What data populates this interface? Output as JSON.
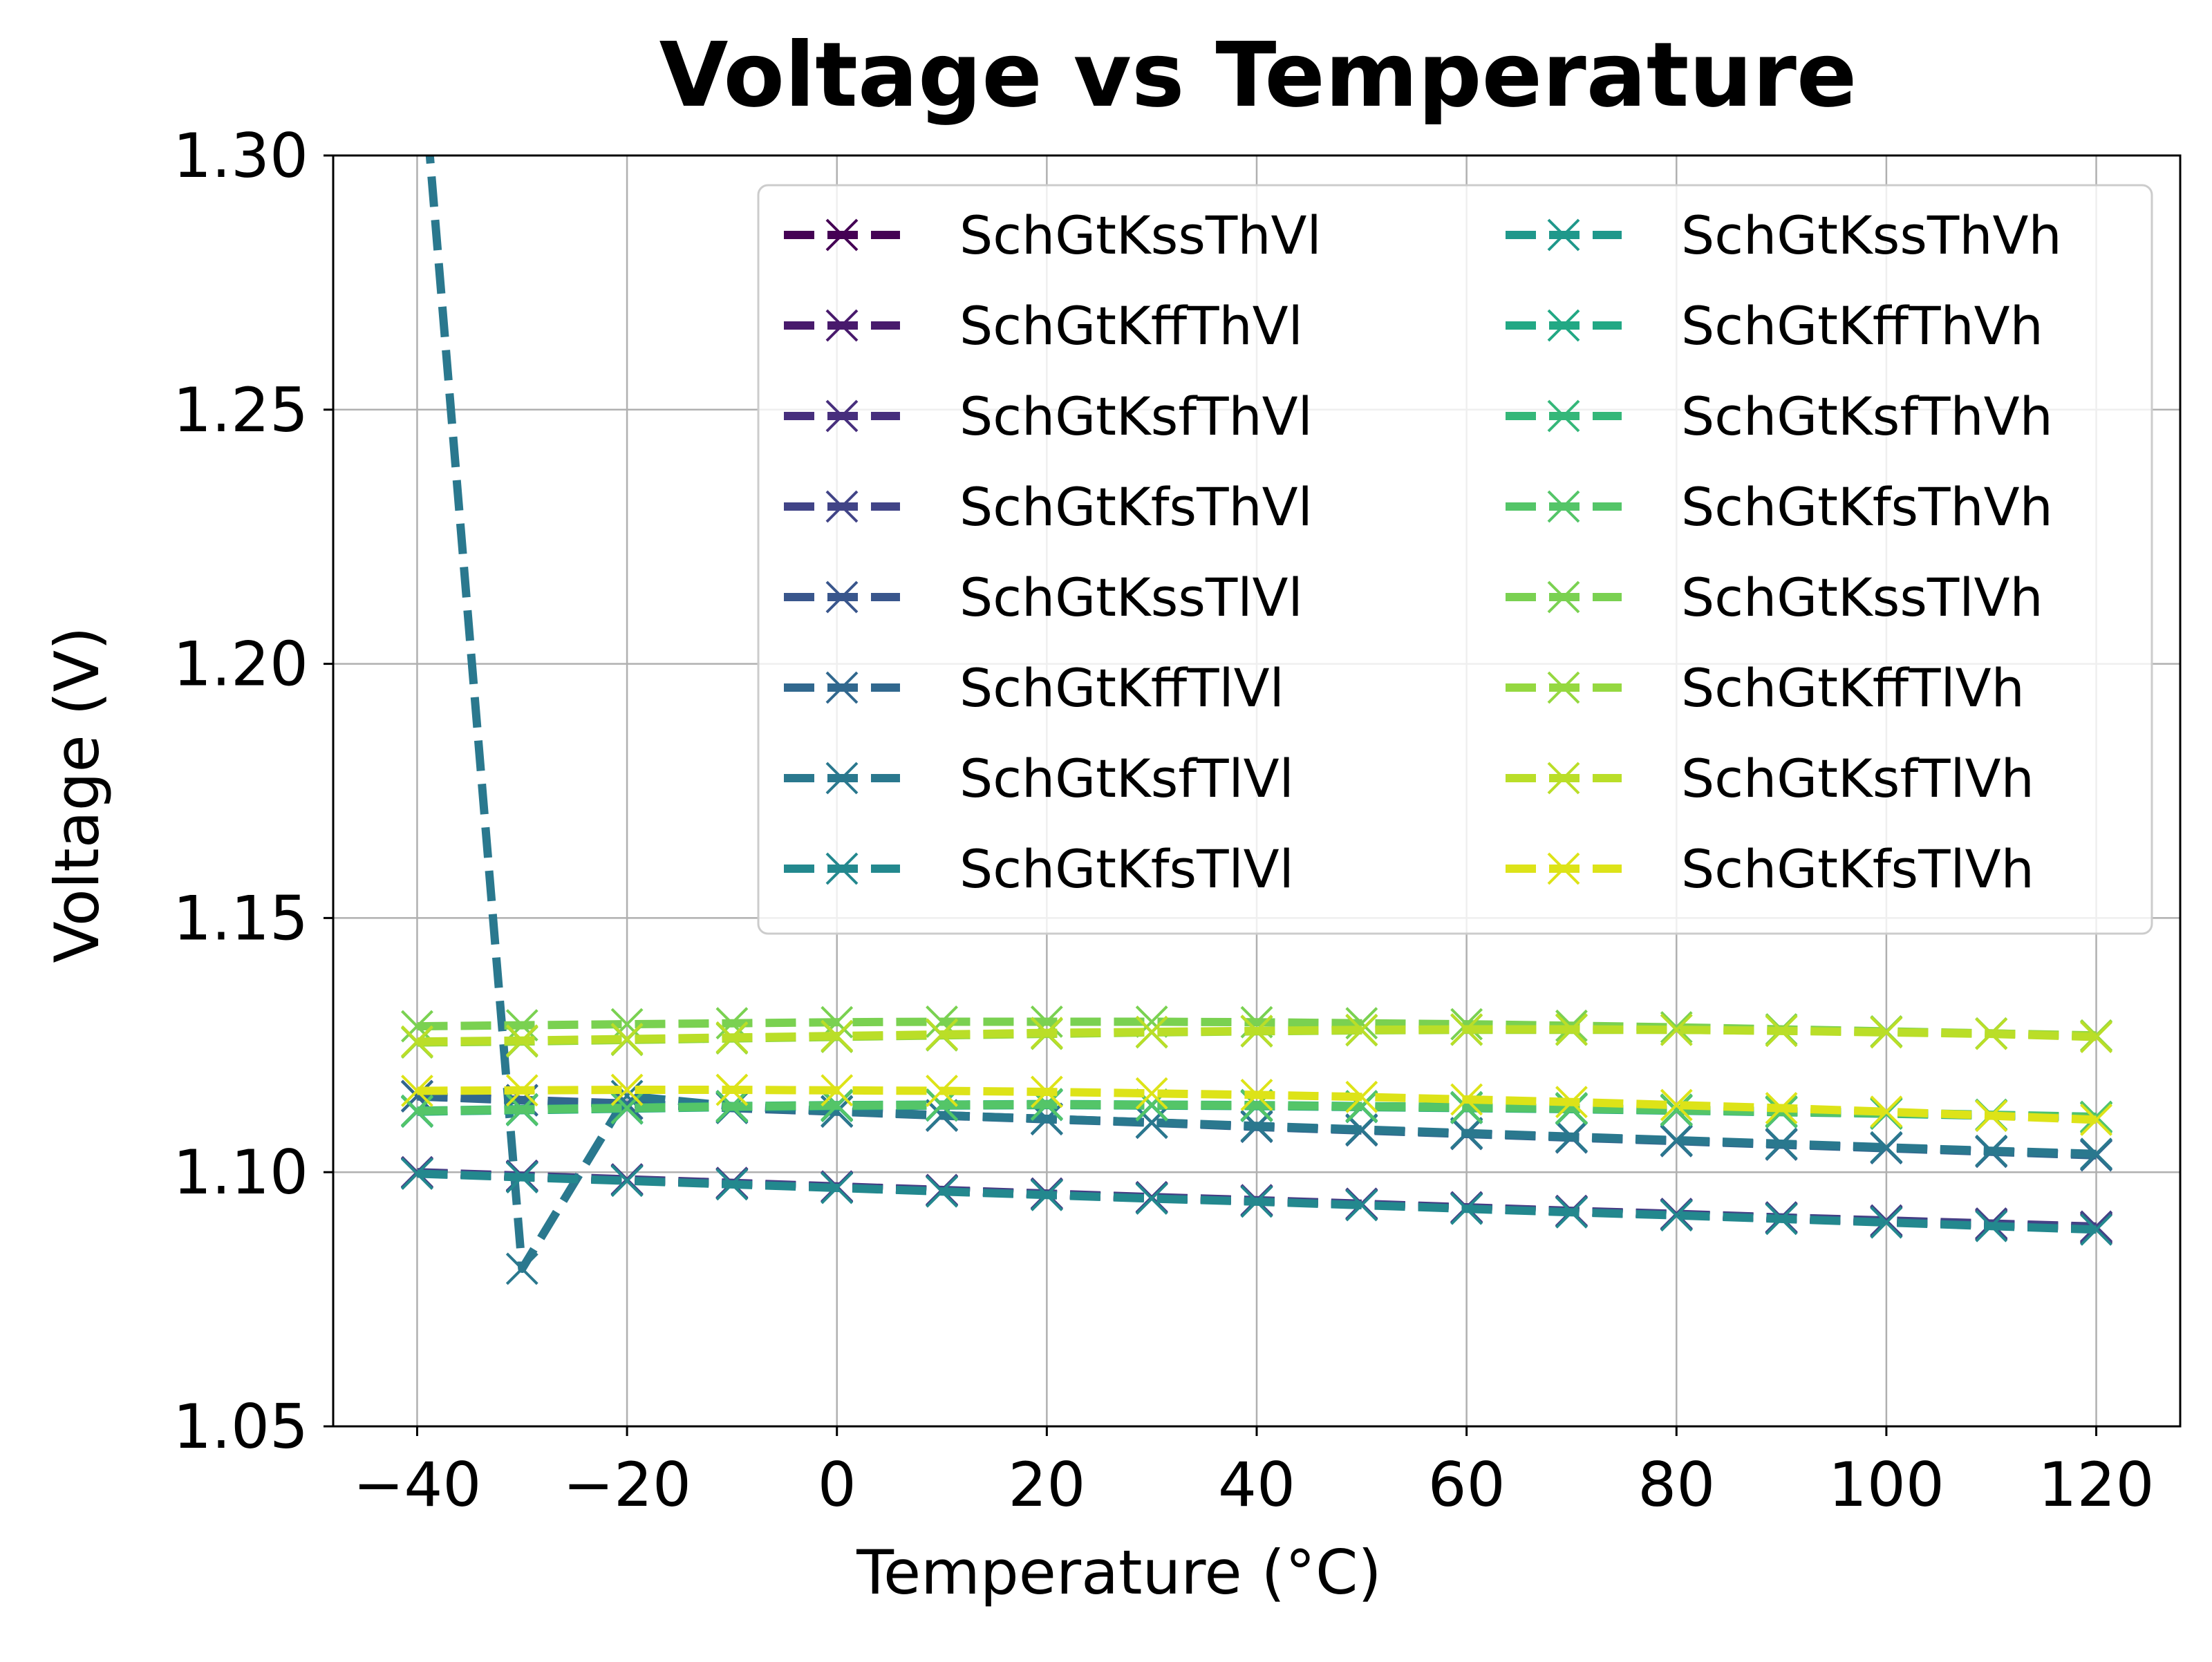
{
  "chart_data": {
    "type": "line",
    "title": "Voltage vs Temperature",
    "xlabel": "Temperature (°C)",
    "ylabel": "Voltage (V)",
    "xlim": [
      -48,
      128
    ],
    "ylim": [
      1.05,
      1.3
    ],
    "xticks": [
      -40,
      -20,
      0,
      20,
      40,
      60,
      80,
      100,
      120
    ],
    "xtick_labels": [
      "−40",
      "−20",
      "0",
      "20",
      "40",
      "60",
      "80",
      "100",
      "120"
    ],
    "yticks": [
      1.05,
      1.1,
      1.15,
      1.2,
      1.25,
      1.3
    ],
    "ytick_labels": [
      "1.05",
      "1.10",
      "1.15",
      "1.20",
      "1.25",
      "1.30"
    ],
    "grid": true,
    "legend": {
      "placement": "top-right",
      "columns": 2
    },
    "line_style": "dashed",
    "marker": "x",
    "x": [
      -40,
      -30,
      -20,
      -10,
      0,
      10,
      20,
      30,
      40,
      50,
      60,
      70,
      80,
      90,
      100,
      110,
      120
    ],
    "series": [
      {
        "name": "SchGtKssThVl",
        "color": "#440154",
        "values": [
          1.0998,
          1.0991,
          1.0984,
          1.0977,
          1.097,
          1.0963,
          1.0956,
          1.0949,
          1.0943,
          1.0936,
          1.0929,
          1.0922,
          1.0916,
          1.0909,
          1.0902,
          1.0896,
          1.0889
        ]
      },
      {
        "name": "SchGtKffThVl",
        "color": "#481a6c",
        "values": [
          1.0999,
          1.0992,
          1.0985,
          1.0978,
          1.0971,
          1.0964,
          1.0957,
          1.095,
          1.0944,
          1.0937,
          1.093,
          1.0923,
          1.0917,
          1.091,
          1.0903,
          1.0897,
          1.0891
        ]
      },
      {
        "name": "SchGtKsfThVl",
        "color": "#472f7d",
        "values": [
          1.1,
          1.0993,
          1.0986,
          1.0979,
          1.0972,
          1.0965,
          1.0958,
          1.0951,
          1.0945,
          1.0938,
          1.0931,
          1.0924,
          1.0918,
          1.0911,
          1.0905,
          1.0899,
          1.0893
        ]
      },
      {
        "name": "SchGtKfsThVl",
        "color": "#414487",
        "values": [
          1.0999,
          1.0992,
          1.0985,
          1.0978,
          1.0971,
          1.0964,
          1.0957,
          1.095,
          1.0944,
          1.0937,
          1.093,
          1.0923,
          1.0917,
          1.0911,
          1.0904,
          1.0898,
          1.0892
        ]
      },
      {
        "name": "SchGtKssTlVl",
        "color": "#39568c",
        "values": [
          1.115,
          1.1142,
          1.1135,
          1.1127,
          1.112,
          1.1112,
          1.1105,
          1.1098,
          1.109,
          1.1083,
          1.1076,
          1.1069,
          1.1062,
          1.1055,
          1.1048,
          1.1041,
          1.1034
        ]
      },
      {
        "name": "SchGtKffTlVl",
        "color": "#31688e",
        "values": [
          1.1149,
          1.1141,
          1.1134,
          1.1126,
          1.1119,
          1.1111,
          1.1104,
          1.1097,
          1.1089,
          1.1082,
          1.1075,
          1.1068,
          1.1061,
          1.1054,
          1.1047,
          1.104,
          1.1033
        ]
      },
      {
        "name": "SchGtKsfTlVl",
        "color": "#2a788e",
        "values": [
          1.33,
          1.081,
          1.115,
          1.113,
          1.112,
          1.1112,
          1.1105,
          1.1098,
          1.1091,
          1.1084,
          1.1077,
          1.107,
          1.1063,
          1.1056,
          1.1049,
          1.1042,
          1.1036
        ]
      },
      {
        "name": "SchGtKfsTlVl",
        "color": "#23888e",
        "values": [
          1.0997,
          1.099,
          1.0983,
          1.0976,
          1.0969,
          1.0962,
          1.0955,
          1.0948,
          1.0942,
          1.0935,
          1.0928,
          1.0921,
          1.0915,
          1.0908,
          1.0901,
          1.0894,
          1.0887
        ]
      },
      {
        "name": "SchGtKssThVh",
        "color": "#1f988b",
        "values": [
          1.112,
          1.1123,
          1.1126,
          1.1129,
          1.1131,
          1.1132,
          1.1133,
          1.1132,
          1.1131,
          1.1129,
          1.1127,
          1.1125,
          1.1122,
          1.1119,
          1.1116,
          1.1112,
          1.1108
        ]
      },
      {
        "name": "SchGtKffThVh",
        "color": "#22a884",
        "values": [
          1.1119,
          1.1122,
          1.1125,
          1.1128,
          1.113,
          1.1131,
          1.1132,
          1.1131,
          1.113,
          1.1128,
          1.1126,
          1.1124,
          1.1121,
          1.1118,
          1.1115,
          1.1111,
          1.1107
        ]
      },
      {
        "name": "SchGtKsfThVh",
        "color": "#35b779",
        "values": [
          1.1121,
          1.1124,
          1.1127,
          1.113,
          1.1132,
          1.1133,
          1.1134,
          1.1133,
          1.1132,
          1.113,
          1.1128,
          1.1126,
          1.1123,
          1.112,
          1.1117,
          1.1113,
          1.1109
        ]
      },
      {
        "name": "SchGtKfsThVh",
        "color": "#54c568",
        "values": [
          1.112,
          1.1123,
          1.1126,
          1.1129,
          1.1131,
          1.1132,
          1.1133,
          1.1132,
          1.1131,
          1.1129,
          1.1127,
          1.1125,
          1.1122,
          1.1119,
          1.1116,
          1.1112,
          1.1108
        ]
      },
      {
        "name": "SchGtKssTlVh",
        "color": "#7ad151",
        "values": [
          1.1287,
          1.1289,
          1.1291,
          1.1293,
          1.1295,
          1.1296,
          1.1296,
          1.1296,
          1.1295,
          1.1293,
          1.1291,
          1.1288,
          1.1285,
          1.1281,
          1.1277,
          1.1273,
          1.1268
        ]
      },
      {
        "name": "SchGtKffTlVh",
        "color": "#95d840",
        "values": [
          1.1255,
          1.1257,
          1.126,
          1.1263,
          1.1266,
          1.1269,
          1.1272,
          1.1275,
          1.1277,
          1.1279,
          1.128,
          1.128,
          1.128,
          1.1278,
          1.1276,
          1.1273,
          1.1269
        ]
      },
      {
        "name": "SchGtKsfTlVh",
        "color": "#bade28",
        "values": [
          1.1257,
          1.1259,
          1.1262,
          1.1265,
          1.1268,
          1.1271,
          1.1274,
          1.1276,
          1.1278,
          1.128,
          1.1281,
          1.1281,
          1.128,
          1.1278,
          1.1275,
          1.1272,
          1.1266
        ]
      },
      {
        "name": "SchGtKfsTlVh",
        "color": "#dde318",
        "values": [
          1.116,
          1.1161,
          1.1162,
          1.1162,
          1.1161,
          1.116,
          1.1158,
          1.1155,
          1.1152,
          1.1148,
          1.1143,
          1.1138,
          1.1132,
          1.1126,
          1.1119,
          1.1111,
          1.1103
        ]
      }
    ]
  }
}
